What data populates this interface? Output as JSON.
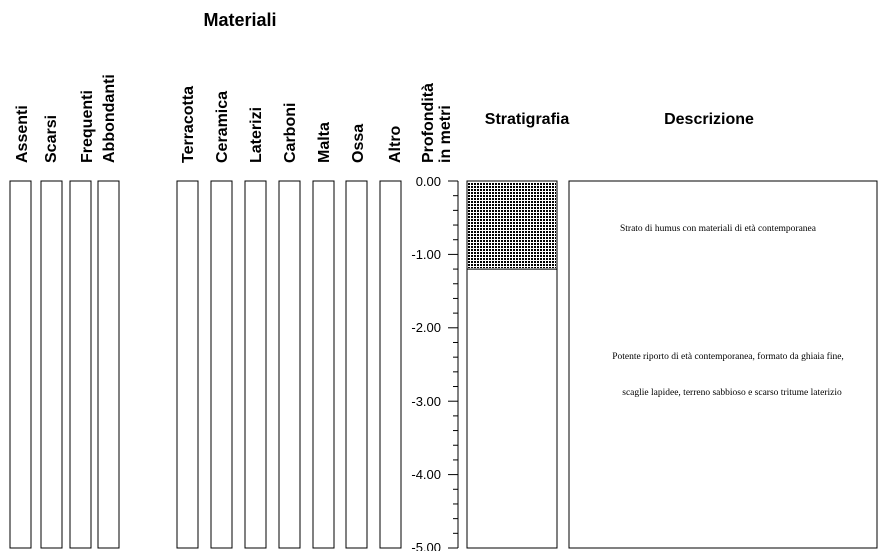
{
  "materiali_title": "Materiali",
  "abundance_columns": [
    "Assenti",
    "Scarsi",
    "Frequenti",
    "Abbondanti"
  ],
  "material_columns": [
    "Terracotta",
    "Ceramica",
    "Laterizi",
    "Carboni",
    "Malta",
    "Ossa",
    "Altro"
  ],
  "depth_header": [
    "Profondità",
    "in metri"
  ],
  "stratigrafia_header": "Stratigrafia",
  "descrizione_header": "Descrizione",
  "depth_ticks": [
    "0.00",
    "-1.00",
    "-2.00",
    "-3.00",
    "-4.00",
    "-5.00"
  ],
  "layers": [
    {
      "from_m": 0.0,
      "to_m": -1.2,
      "pattern": "dotted",
      "description": [
        "Strato di humus con materiali di età contemporanea"
      ]
    },
    {
      "from_m": -1.2,
      "to_m": -5.0,
      "pattern": "plain",
      "description": [
        "Potente riporto di età contemporanea, formato da ghiaia fine,",
        "scaglie lapidee, terreno sabbioso e scarso tritume laterizio"
      ]
    }
  ]
}
